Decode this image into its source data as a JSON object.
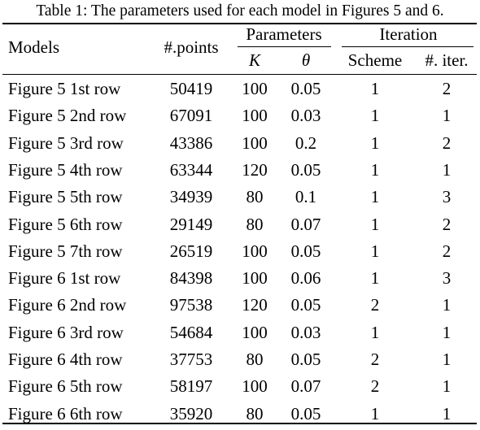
{
  "caption": "Table 1: The parameters used for each model in Figures 5 and 6.",
  "headers": {
    "models": "Models",
    "points": "#.points",
    "parameters": "Parameters",
    "k": "K",
    "theta": "θ",
    "iteration": "Iteration",
    "scheme": "Scheme",
    "num_iter": "#. iter."
  },
  "rows": [
    {
      "model": "Figure 5 1st row",
      "points": "50419",
      "k": "100",
      "theta": "0.05",
      "scheme": "1",
      "iter": "2"
    },
    {
      "model": "Figure 5 2nd row",
      "points": "67091",
      "k": "100",
      "theta": "0.03",
      "scheme": "1",
      "iter": "1"
    },
    {
      "model": "Figure 5 3rd row",
      "points": "43386",
      "k": "100",
      "theta": "0.2",
      "scheme": "1",
      "iter": "2"
    },
    {
      "model": "Figure 5 4th row",
      "points": "63344",
      "k": "120",
      "theta": "0.05",
      "scheme": "1",
      "iter": "1"
    },
    {
      "model": "Figure 5 5th row",
      "points": "34939",
      "k": "80",
      "theta": "0.1",
      "scheme": "1",
      "iter": "3"
    },
    {
      "model": "Figure 5 6th row",
      "points": "29149",
      "k": "80",
      "theta": "0.07",
      "scheme": "1",
      "iter": "2"
    },
    {
      "model": "Figure 5 7th row",
      "points": "26519",
      "k": "100",
      "theta": "0.05",
      "scheme": "1",
      "iter": "2"
    },
    {
      "model": "Figure 6 1st row",
      "points": "84398",
      "k": "100",
      "theta": "0.06",
      "scheme": "1",
      "iter": "3"
    },
    {
      "model": "Figure 6 2nd row",
      "points": "97538",
      "k": "120",
      "theta": "0.05",
      "scheme": "2",
      "iter": "1"
    },
    {
      "model": "Figure 6 3rd row",
      "points": "54684",
      "k": "100",
      "theta": "0.03",
      "scheme": "1",
      "iter": "1"
    },
    {
      "model": "Figure 6 4th row",
      "points": "37753",
      "k": "80",
      "theta": "0.05",
      "scheme": "2",
      "iter": "1"
    },
    {
      "model": "Figure 6 5th row",
      "points": "58197",
      "k": "100",
      "theta": "0.07",
      "scheme": "2",
      "iter": "1"
    },
    {
      "model": "Figure 6 6th row",
      "points": "35920",
      "k": "80",
      "theta": "0.05",
      "scheme": "1",
      "iter": "1"
    }
  ]
}
